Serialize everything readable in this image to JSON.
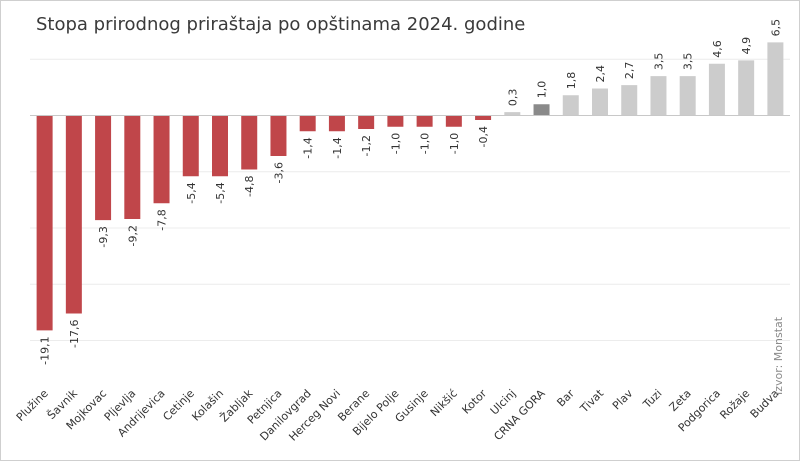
{
  "title": "Stopa prirodnog priraštaja po opštinama 2024. godine",
  "source": "Izvor: Monstat",
  "colors": {
    "negative": "#c0464a",
    "positive": "#cccccc",
    "highlight": "#8a8a8a"
  },
  "chart_data": {
    "type": "bar",
    "title": "Stopa prirodnog priraštaja po opštinama 2024. godine",
    "xlabel": "",
    "ylabel": "",
    "ylim": [
      -22,
      10
    ],
    "grid": true,
    "legend": "none",
    "categories": [
      "Plužine",
      "Šavnik",
      "Mojkovac",
      "Pljevlja",
      "Andrijevica",
      "Cetinje",
      "Kolašin",
      "Žabljak",
      "Petnjica",
      "Danilovgrad",
      "Herceg Novi",
      "Berane",
      "Bijelo Polje",
      "Gusinje",
      "Nikšić",
      "Kotor",
      "Ulcinj",
      "CRNA GORA",
      "Bar",
      "Tivat",
      "Plav",
      "Tuzi",
      "Zeta",
      "Podgorica",
      "Rožaje",
      "Budva"
    ],
    "values": [
      -19.1,
      -17.6,
      -9.3,
      -9.2,
      -7.8,
      -5.4,
      -5.4,
      -4.8,
      -3.6,
      -1.4,
      -1.4,
      -1.2,
      -1.0,
      -1.0,
      -1.0,
      -0.4,
      0.3,
      1.0,
      1.8,
      2.4,
      2.7,
      3.5,
      3.5,
      4.6,
      4.9,
      6.5
    ],
    "value_labels": [
      "-19,1",
      "-17,6",
      "-9,3",
      "-9,2",
      "-7,8",
      "-5,4",
      "-5,4",
      "-4,8",
      "-3,6",
      "-1,4",
      "-1,4",
      "-1,2",
      "-1,0",
      "-1,0",
      "-1,0",
      "-0,4",
      "0,3",
      "1,0",
      "1,8",
      "2,4",
      "2,7",
      "3,5",
      "3,5",
      "4,6",
      "4,9",
      "6,5"
    ],
    "highlight": "CRNA GORA"
  }
}
